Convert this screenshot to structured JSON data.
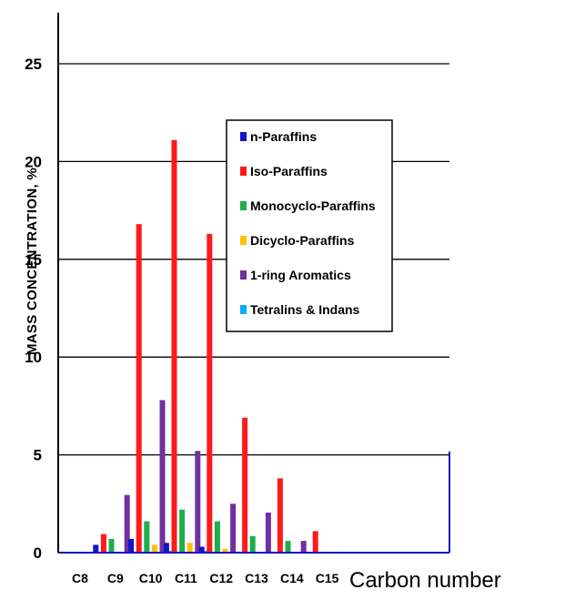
{
  "chart_data": {
    "type": "bar",
    "title": "",
    "xlabel": "Carbon number",
    "ylabel": "MASS CONCENTRATION, %",
    "ylim": [
      0,
      27
    ],
    "yticks": [
      0,
      5,
      10,
      15,
      20,
      25
    ],
    "grid": "horizontal",
    "legend_position": "center-right",
    "categories": [
      "C8",
      "C9",
      "C10",
      "C11",
      "C12",
      "C13",
      "C14",
      "C15"
    ],
    "series": [
      {
        "name": "n-Paraffins",
        "color": "#1414c8",
        "values": [
          0.05,
          0.4,
          0.7,
          0.5,
          0.3,
          0.05,
          0.05,
          0.05
        ]
      },
      {
        "name": "Iso-Paraffins",
        "color": "#ff1a1a",
        "values": [
          0.05,
          0.95,
          16.8,
          21.1,
          16.3,
          6.9,
          3.8,
          1.1
        ]
      },
      {
        "name": "Monocyclo-Paraffins",
        "color": "#1fae4a",
        "values": [
          0.05,
          0.7,
          1.6,
          2.2,
          1.6,
          0.85,
          0.6,
          0.05
        ]
      },
      {
        "name": "Dicyclo-Paraffins",
        "color": "#ffc000",
        "values": [
          0.0,
          0.05,
          0.4,
          0.5,
          0.2,
          0.05,
          0.0,
          0.0
        ]
      },
      {
        "name": "1-ring Aromatics",
        "color": "#7030a0",
        "values": [
          0.05,
          2.95,
          7.8,
          5.2,
          2.5,
          2.05,
          0.6,
          0.05
        ]
      },
      {
        "name": "Tetralins & Indans",
        "color": "#00b0f0",
        "values": [
          0.05,
          0.05,
          0.1,
          0.1,
          0.05,
          0.0,
          0.0,
          0.0
        ]
      }
    ]
  }
}
